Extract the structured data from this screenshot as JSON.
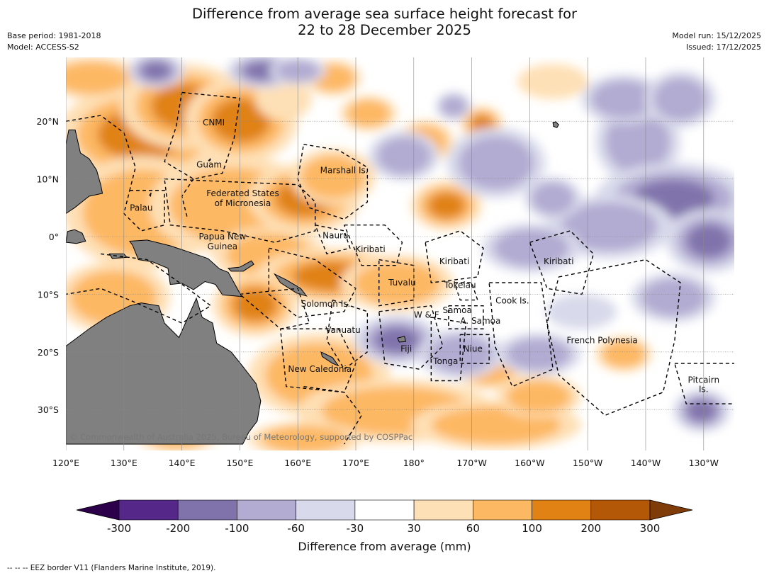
{
  "title": {
    "line1": "Difference from average sea surface height forecast for",
    "line2": "22 to 28 December 2025"
  },
  "meta_left": {
    "base_period": "Base period: 1981-2018",
    "model": "Model: ACCESS-S2"
  },
  "meta_right": {
    "model_run": "Model run: 15/12/2025",
    "issued": "Issued: 17/12/2025"
  },
  "map": {
    "lon_ticks": [
      "120°E",
      "130°E",
      "140°E",
      "150°E",
      "160°E",
      "170°E",
      "180°",
      "170°W",
      "160°W",
      "150°W",
      "140°W",
      "130°W"
    ],
    "lat_ticks": [
      "20°N",
      "10°N",
      "0°",
      "10°S",
      "20°S",
      "30°S"
    ],
    "land_color": "#808080",
    "copyright": "© Commonwealth of Australia 2025, Bureau of Meteorology, supported by COSPPac",
    "region_labels": [
      {
        "text": "CNMI",
        "lon": 145.5,
        "lat": 19.8
      },
      {
        "text": "Guam",
        "lon": 144.7,
        "lat": 12.5
      },
      {
        "text": "Marshall Is.",
        "lon": 168.0,
        "lat": 11.5
      },
      {
        "text": "Federated States",
        "lon": 150.5,
        "lat": 7.5
      },
      {
        "text": "of Micronesia",
        "lon": 150.5,
        "lat": 5.8
      },
      {
        "text": "Palau",
        "lon": 133.0,
        "lat": 5.0
      },
      {
        "text": "Nauru",
        "lon": 166.5,
        "lat": 0.2
      },
      {
        "text": "Papua New",
        "lon": 147.0,
        "lat": 0.0
      },
      {
        "text": "Guinea",
        "lon": 147.0,
        "lat": -1.7
      },
      {
        "text": "Kiribati",
        "lon": 172.5,
        "lat": -2.2
      },
      {
        "text": "Kiribati",
        "lon": -173.0,
        "lat": -4.3
      },
      {
        "text": "Kiribati",
        "lon": -155.0,
        "lat": -4.3
      },
      {
        "text": "Tuvalu",
        "lon": 178.0,
        "lat": -8.0
      },
      {
        "text": "Tokelau",
        "lon": -172.0,
        "lat": -8.4
      },
      {
        "text": "Cook Is.",
        "lon": -163.0,
        "lat": -11.1
      },
      {
        "text": "Solomon Is.",
        "lon": 164.8,
        "lat": -11.7
      },
      {
        "text": "Samoa",
        "lon": -172.5,
        "lat": -12.8
      },
      {
        "text": "W & F",
        "lon": -177.8,
        "lat": -13.6
      },
      {
        "text": "A. Samoa",
        "lon": -168.5,
        "lat": -14.6
      },
      {
        "text": "Vanuatu",
        "lon": 167.8,
        "lat": -16.2
      },
      {
        "text": "French Polynesia",
        "lon": -147.5,
        "lat": -18.0
      },
      {
        "text": "Fiji",
        "lon": 178.7,
        "lat": -19.5
      },
      {
        "text": "Niue",
        "lon": -169.8,
        "lat": -19.5
      },
      {
        "text": "Tonga",
        "lon": -174.5,
        "lat": -21.6
      },
      {
        "text": "New Caledonia",
        "lon": 163.8,
        "lat": -23.0
      },
      {
        "text": "Pitcairn",
        "lon": -130.0,
        "lat": -24.9
      },
      {
        "text": "Is.",
        "lon": -130.0,
        "lat": -26.5
      }
    ]
  },
  "colorbar": {
    "tick_labels": [
      "-300",
      "-200",
      "-100",
      "-60",
      "-30",
      "30",
      "60",
      "100",
      "200",
      "300"
    ],
    "colors": [
      "#2d004b",
      "#542788",
      "#8073ac",
      "#b2abd2",
      "#d8daeb",
      "#ffffff",
      "#fee0b6",
      "#fdb863",
      "#e08214",
      "#b35806",
      "#7f3b08"
    ],
    "label": "Difference from average (mm)"
  },
  "footer": "--  --  -- EEZ border V11 (Flanders Marine Institute, 2019)."
}
